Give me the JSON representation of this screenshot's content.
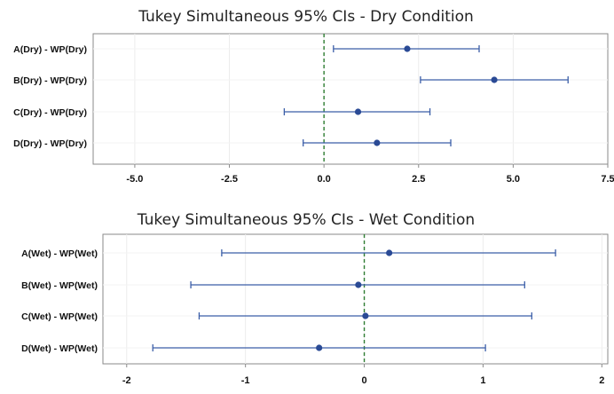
{
  "chart_data": [
    {
      "type": "interval",
      "title": "Tukey Simultaneous 95% CIs - Dry Condition",
      "categories": [
        "A(Dry) - WP(Dry)",
        "B(Dry) - WP(Dry)",
        "C(Dry) - WP(Dry)",
        "D(Dry) - WP(Dry)"
      ],
      "estimates": [
        2.2,
        4.5,
        0.9,
        1.4
      ],
      "lower": [
        0.25,
        2.55,
        -1.05,
        -0.55
      ],
      "upper": [
        4.1,
        6.45,
        2.8,
        3.35
      ],
      "xlim": [
        -6.1,
        7.5
      ],
      "xticks": [
        -5.0,
        -2.5,
        0.0,
        2.5,
        5.0,
        7.5
      ],
      "xtick_labels": [
        "-5.0",
        "-2.5",
        "0.0",
        "2.5",
        "5.0",
        "7.5"
      ],
      "reference_line": 0,
      "grid": "vertical-light"
    },
    {
      "type": "interval",
      "title": "Tukey Simultaneous 95% CIs - Wet Condition",
      "categories": [
        "A(Wet) - WP(Wet)",
        "B(Wet) - WP(Wet)",
        "C(Wet) - WP(Wet)",
        "D(Wet) - WP(Wet)"
      ],
      "estimates": [
        0.21,
        -0.05,
        0.01,
        -0.38
      ],
      "lower": [
        -1.2,
        -1.46,
        -1.39,
        -1.78
      ],
      "upper": [
        1.61,
        1.35,
        1.41,
        1.02
      ],
      "xlim": [
        -2.2,
        2.05
      ],
      "xticks": [
        -2,
        -1,
        0,
        1,
        2
      ],
      "xtick_labels": [
        "-2",
        "-1",
        "0",
        "1",
        "2"
      ],
      "reference_line": 0,
      "grid": "vertical-light"
    }
  ],
  "colors": {
    "interval": "#3b5ea8",
    "point": "#2a4a95",
    "reference": "#2e7d32",
    "frame": "#8a8a8a",
    "grid": "#ececec"
  }
}
